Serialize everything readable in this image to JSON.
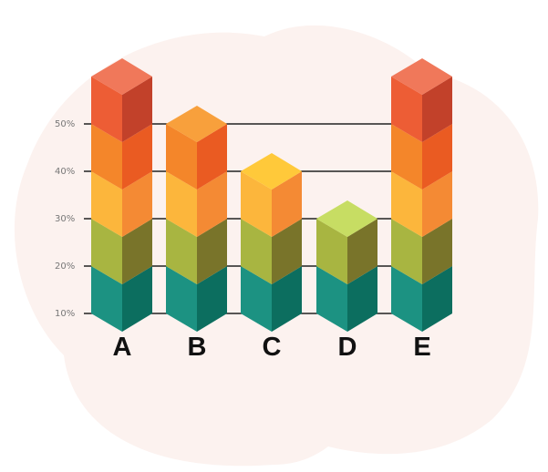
{
  "chart_data": {
    "type": "bar",
    "stacked": true,
    "style": "3d-isometric-cubes",
    "categories": [
      "A",
      "B",
      "C",
      "D",
      "E"
    ],
    "segments_per_category": [
      5,
      4,
      3,
      2,
      5
    ],
    "y_tick_labels": [
      "10%",
      "20%",
      "30%",
      "40%",
      "50%"
    ],
    "y_ticks": [
      10,
      20,
      30,
      40,
      50
    ],
    "ylim": [
      10,
      50
    ],
    "grid": true,
    "legend": "none",
    "level_colors": [
      {
        "front": "#1c9282",
        "side": "#0c6e5f",
        "top": "#22ab9b"
      },
      {
        "front": "#a8b541",
        "side": "#79742a",
        "top": "#c7dd63"
      },
      {
        "front": "#fcb63c",
        "side": "#f48a34",
        "top": "#ffc93a"
      },
      {
        "front": "#f4862a",
        "side": "#ea5b22",
        "top": "#f8a03c"
      },
      {
        "front": "#ed5d35",
        "side": "#c2412a",
        "top": "#f0785a"
      }
    ],
    "background_blob_color": "#fcf2ef",
    "gridline_color": "#222222"
  },
  "labels": {
    "A": "A",
    "B": "B",
    "C": "C",
    "D": "D",
    "E": "E"
  }
}
